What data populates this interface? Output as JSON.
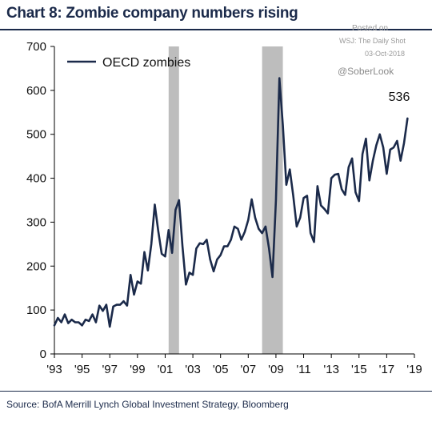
{
  "title": "Chart 8: Zombie company numbers rising",
  "watermark": {
    "line1": "Posted on",
    "line2": "WSJ: The Daily Shot",
    "line3": "03-Oct-2018",
    "handle": "@SoberLook"
  },
  "source": "Source:  BofA Merrill Lynch Global Investment Strategy, Bloomberg",
  "chart_data": {
    "type": "line",
    "xlabel": "",
    "ylabel": "",
    "xlim": [
      1993,
      2019
    ],
    "ylim": [
      0,
      700
    ],
    "y_ticks": [
      0,
      100,
      200,
      300,
      400,
      500,
      600,
      700
    ],
    "x_ticks": [
      1993,
      1995,
      1997,
      1999,
      2001,
      2003,
      2005,
      2007,
      2009,
      2011,
      2013,
      2015,
      2017,
      2019
    ],
    "x_tick_labels": [
      "'93",
      "'95",
      "'97",
      "'99",
      "'01",
      "'03",
      "'05",
      "'07",
      "'09",
      "'11",
      "'13",
      "'15",
      "'17",
      "'19"
    ],
    "grid": false,
    "legend": {
      "position": "top-left",
      "entries": [
        "OECD zombies"
      ]
    },
    "line_color": "#1b2a4a",
    "recession_color": "#bdbdbd",
    "recessions": [
      [
        2001.25,
        2002.0
      ],
      [
        2008.0,
        2009.5
      ]
    ],
    "end_label": "536",
    "series": [
      {
        "name": "OECD zombies",
        "x": [
          1993.0,
          1993.25,
          1993.5,
          1993.75,
          1994.0,
          1994.25,
          1994.5,
          1994.75,
          1995.0,
          1995.25,
          1995.5,
          1995.75,
          1996.0,
          1996.25,
          1996.5,
          1996.75,
          1997.0,
          1997.25,
          1997.5,
          1997.75,
          1998.0,
          1998.25,
          1998.5,
          1998.75,
          1999.0,
          1999.25,
          1999.5,
          1999.75,
          2000.0,
          2000.25,
          2000.5,
          2000.75,
          2001.0,
          2001.25,
          2001.5,
          2001.75,
          2002.0,
          2002.25,
          2002.5,
          2002.75,
          2003.0,
          2003.25,
          2003.5,
          2003.75,
          2004.0,
          2004.25,
          2004.5,
          2004.75,
          2005.0,
          2005.25,
          2005.5,
          2005.75,
          2006.0,
          2006.25,
          2006.5,
          2006.75,
          2007.0,
          2007.25,
          2007.5,
          2007.75,
          2008.0,
          2008.25,
          2008.5,
          2008.75,
          2009.0,
          2009.25,
          2009.5,
          2009.75,
          2010.0,
          2010.25,
          2010.5,
          2010.75,
          2011.0,
          2011.25,
          2011.5,
          2011.75,
          2012.0,
          2012.25,
          2012.5,
          2012.75,
          2013.0,
          2013.25,
          2013.5,
          2013.75,
          2014.0,
          2014.25,
          2014.5,
          2014.75,
          2015.0,
          2015.25,
          2015.5,
          2015.75,
          2016.0,
          2016.25,
          2016.5,
          2016.75,
          2017.0,
          2017.25,
          2017.5,
          2017.75,
          2018.0,
          2018.25,
          2018.5
        ],
        "values": [
          65,
          82,
          72,
          90,
          70,
          78,
          72,
          72,
          65,
          78,
          75,
          90,
          72,
          110,
          98,
          112,
          62,
          108,
          112,
          112,
          120,
          110,
          180,
          135,
          165,
          160,
          232,
          190,
          250,
          340,
          280,
          228,
          222,
          282,
          230,
          328,
          350,
          245,
          158,
          185,
          180,
          240,
          252,
          250,
          260,
          215,
          188,
          215,
          225,
          245,
          245,
          260,
          290,
          285,
          260,
          278,
          305,
          352,
          310,
          285,
          275,
          290,
          240,
          175,
          350,
          628,
          520,
          385,
          420,
          360,
          290,
          310,
          355,
          360,
          275,
          255,
          382,
          338,
          330,
          320,
          400,
          408,
          410,
          375,
          362,
          425,
          445,
          368,
          348,
          455,
          490,
          395,
          440,
          475,
          500,
          470,
          410,
          465,
          470,
          485,
          440,
          480,
          536
        ]
      }
    ]
  }
}
